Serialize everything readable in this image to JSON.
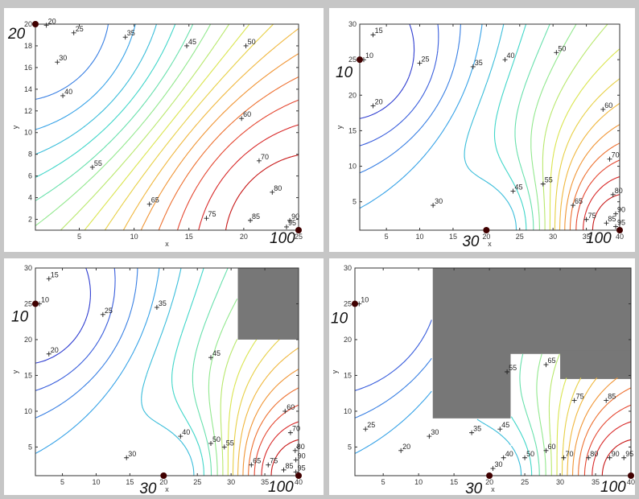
{
  "figure": {
    "background": "#c6c6c6",
    "colormap": [
      "#2a2ac8",
      "#3a66e0",
      "#36a8e8",
      "#40d8c8",
      "#90e890",
      "#d8e850",
      "#f0c040",
      "#f08030",
      "#e03030",
      "#c01010"
    ],
    "obstacle_color": "#777777",
    "well_color": "#400000"
  },
  "chart_data": [
    {
      "type": "contour",
      "xlabel": "x",
      "ylabel": "y",
      "xlim": [
        1,
        25
      ],
      "ylim": [
        1,
        20
      ],
      "xticks": [
        "5",
        "10",
        "15",
        "20",
        "25"
      ],
      "yticks": [
        "2",
        "4",
        "6",
        "8",
        "10",
        "12",
        "14",
        "16",
        "18",
        "20"
      ],
      "wells": [
        {
          "x": 1.0,
          "y": 20.0,
          "value": 20,
          "label": "20"
        },
        {
          "x": 25.0,
          "y": 1.0,
          "value": 100,
          "label": "100"
        }
      ],
      "contour_levels": [
        20,
        25,
        30,
        35,
        40,
        45,
        50,
        55,
        60,
        65,
        70,
        75,
        80,
        85,
        90,
        95
      ],
      "contour_labels": [
        {
          "text": "20",
          "x": 2.0,
          "y": 19.9
        },
        {
          "text": "25",
          "x": 4.5,
          "y": 19.2
        },
        {
          "text": "30",
          "x": 3.0,
          "y": 16.5
        },
        {
          "text": "35",
          "x": 9.2,
          "y": 18.8
        },
        {
          "text": "40",
          "x": 3.5,
          "y": 13.4
        },
        {
          "text": "45",
          "x": 14.8,
          "y": 18.0
        },
        {
          "text": "50",
          "x": 20.2,
          "y": 18.0
        },
        {
          "text": "55",
          "x": 6.2,
          "y": 6.8
        },
        {
          "text": "60",
          "x": 19.8,
          "y": 11.3
        },
        {
          "text": "65",
          "x": 11.4,
          "y": 3.4
        },
        {
          "text": "70",
          "x": 21.4,
          "y": 7.4
        },
        {
          "text": "75",
          "x": 16.6,
          "y": 2.1
        },
        {
          "text": "80",
          "x": 22.6,
          "y": 4.5
        },
        {
          "text": "85",
          "x": 20.6,
          "y": 1.9
        },
        {
          "text": "90",
          "x": 24.2,
          "y": 1.9
        },
        {
          "text": "95",
          "x": 23.9,
          "y": 1.3
        }
      ],
      "obstacles": []
    },
    {
      "type": "contour",
      "xlabel": "x",
      "ylabel": "y",
      "xlim": [
        1,
        40
      ],
      "ylim": [
        1,
        30
      ],
      "xticks": [
        "5",
        "10",
        "15",
        "20",
        "25",
        "30",
        "35",
        "40"
      ],
      "yticks": [
        "5",
        "10",
        "15",
        "20",
        "25",
        "30"
      ],
      "wells": [
        {
          "x": 1.0,
          "y": 25.0,
          "value": 10,
          "label": "10"
        },
        {
          "x": 20.0,
          "y": 1.0,
          "value": 30,
          "label": "30"
        },
        {
          "x": 40.0,
          "y": 1.0,
          "value": 100,
          "label": "100"
        }
      ],
      "contour_levels": [
        15,
        20,
        25,
        30,
        35,
        40,
        45,
        50,
        55,
        60,
        65,
        70,
        75,
        80,
        85,
        90,
        95
      ],
      "contour_labels": [
        {
          "text": "10",
          "x": 1.6,
          "y": 25.0
        },
        {
          "text": "15",
          "x": 3.0,
          "y": 28.5
        },
        {
          "text": "20",
          "x": 3.0,
          "y": 18.5
        },
        {
          "text": "25",
          "x": 10.0,
          "y": 24.5
        },
        {
          "text": "30",
          "x": 12.0,
          "y": 4.5
        },
        {
          "text": "35",
          "x": 18.0,
          "y": 24.0
        },
        {
          "text": "40",
          "x": 22.8,
          "y": 25.0
        },
        {
          "text": "45",
          "x": 24.0,
          "y": 6.5
        },
        {
          "text": "50",
          "x": 30.5,
          "y": 26.0
        },
        {
          "text": "55",
          "x": 28.5,
          "y": 7.5
        },
        {
          "text": "60",
          "x": 37.5,
          "y": 18.0
        },
        {
          "text": "65",
          "x": 33.0,
          "y": 4.5
        },
        {
          "text": "70",
          "x": 38.5,
          "y": 11.0
        },
        {
          "text": "75",
          "x": 35.0,
          "y": 2.5
        },
        {
          "text": "80",
          "x": 39.0,
          "y": 6.0
        },
        {
          "text": "85",
          "x": 38.0,
          "y": 2.0
        },
        {
          "text": "90",
          "x": 39.4,
          "y": 3.3
        },
        {
          "text": "95",
          "x": 39.4,
          "y": 1.5
        }
      ],
      "obstacles": []
    },
    {
      "type": "contour",
      "xlabel": "x",
      "ylabel": "y",
      "xlim": [
        1,
        40
      ],
      "ylim": [
        1,
        30
      ],
      "xticks": [
        "5",
        "10",
        "15",
        "20",
        "25",
        "30",
        "35",
        "40"
      ],
      "yticks": [
        "5",
        "10",
        "15",
        "20",
        "25",
        "30"
      ],
      "wells": [
        {
          "x": 1.0,
          "y": 25.0,
          "value": 10,
          "label": "10"
        },
        {
          "x": 20.0,
          "y": 1.0,
          "value": 30,
          "label": "30"
        },
        {
          "x": 40.0,
          "y": 1.0,
          "value": 100,
          "label": "100"
        }
      ],
      "contour_levels": [
        15,
        20,
        25,
        30,
        35,
        40,
        45,
        50,
        55,
        60,
        65,
        70,
        75,
        80,
        85,
        90,
        95
      ],
      "contour_labels": [
        {
          "text": "10",
          "x": 1.6,
          "y": 25.0
        },
        {
          "text": "15",
          "x": 3.0,
          "y": 28.5
        },
        {
          "text": "20",
          "x": 3.0,
          "y": 18.0
        },
        {
          "text": "25",
          "x": 11.0,
          "y": 23.5
        },
        {
          "text": "30",
          "x": 14.5,
          "y": 3.5
        },
        {
          "text": "35",
          "x": 19.0,
          "y": 24.5
        },
        {
          "text": "40",
          "x": 22.5,
          "y": 6.5
        },
        {
          "text": "45",
          "x": 27.0,
          "y": 17.5
        },
        {
          "text": "50",
          "x": 27.0,
          "y": 5.5
        },
        {
          "text": "55",
          "x": 29.0,
          "y": 5.0
        },
        {
          "text": "60",
          "x": 38.0,
          "y": 10.0
        },
        {
          "text": "65",
          "x": 33.0,
          "y": 2.5
        },
        {
          "text": "70",
          "x": 38.8,
          "y": 7.0
        },
        {
          "text": "75",
          "x": 35.5,
          "y": 2.5
        },
        {
          "text": "80",
          "x": 39.5,
          "y": 4.5
        },
        {
          "text": "85",
          "x": 37.8,
          "y": 1.8
        },
        {
          "text": "90",
          "x": 39.6,
          "y": 3.2
        },
        {
          "text": "95",
          "x": 39.6,
          "y": 1.5
        }
      ],
      "obstacles": [
        {
          "x0": 31,
          "x1": 40,
          "y0": 20,
          "y1": 30
        }
      ]
    },
    {
      "type": "contour",
      "xlabel": "x",
      "ylabel": "y",
      "xlim": [
        1,
        40
      ],
      "ylim": [
        1,
        30
      ],
      "xticks": [
        "5",
        "10",
        "15",
        "20",
        "25",
        "30",
        "35",
        "40"
      ],
      "yticks": [
        "5",
        "10",
        "15",
        "20",
        "25",
        "30"
      ],
      "wells": [
        {
          "x": 1.0,
          "y": 25.0,
          "value": 10,
          "label": "10"
        },
        {
          "x": 20.0,
          "y": 1.0,
          "value": 30,
          "label": "30"
        },
        {
          "x": 40.0,
          "y": 1.0,
          "value": 100,
          "label": "100"
        }
      ],
      "contour_levels": [
        20,
        25,
        30,
        35,
        40,
        45,
        50,
        55,
        60,
        65,
        70,
        75,
        80,
        85,
        90,
        95
      ],
      "contour_labels": [
        {
          "text": "10",
          "x": 1.6,
          "y": 25.0
        },
        {
          "text": "20",
          "x": 7.5,
          "y": 4.5
        },
        {
          "text": "25",
          "x": 2.5,
          "y": 7.5
        },
        {
          "text": "30",
          "x": 11.5,
          "y": 6.5
        },
        {
          "text": "30",
          "x": 20.5,
          "y": 2.0
        },
        {
          "text": "35",
          "x": 17.5,
          "y": 7.0
        },
        {
          "text": "40",
          "x": 22.0,
          "y": 3.5
        },
        {
          "text": "45",
          "x": 21.5,
          "y": 7.5
        },
        {
          "text": "50",
          "x": 25.0,
          "y": 3.5
        },
        {
          "text": "55",
          "x": 22.5,
          "y": 15.5
        },
        {
          "text": "60",
          "x": 28.0,
          "y": 4.5
        },
        {
          "text": "65",
          "x": 28.0,
          "y": 16.5
        },
        {
          "text": "70",
          "x": 30.5,
          "y": 3.5
        },
        {
          "text": "75",
          "x": 32.0,
          "y": 11.5
        },
        {
          "text": "80",
          "x": 34.0,
          "y": 3.5
        },
        {
          "text": "85",
          "x": 36.5,
          "y": 11.5
        },
        {
          "text": "90",
          "x": 37.0,
          "y": 3.5
        },
        {
          "text": "95",
          "x": 39.0,
          "y": 3.5
        }
      ],
      "obstacles": [
        {
          "x0": 12,
          "x1": 40,
          "y0": 9,
          "y1": 30
        },
        {
          "x0": 23,
          "x1": 30,
          "y0": 17,
          "y1": 18.5
        },
        {
          "x0": 30,
          "x1": 40,
          "y0": 14.5,
          "y1": 18.5
        }
      ],
      "clear_areas": [
        {
          "x0": 23,
          "x1": 30,
          "y0": 1,
          "y1": 18
        },
        {
          "x0": 30,
          "x1": 40,
          "y0": 1,
          "y1": 14.5
        }
      ]
    }
  ]
}
